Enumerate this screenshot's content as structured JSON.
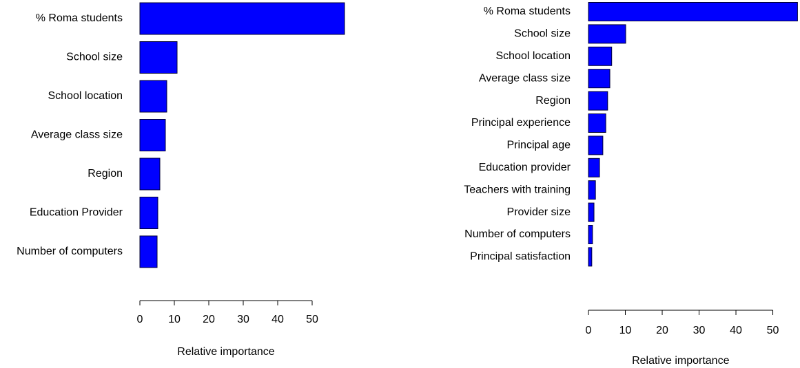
{
  "chart_data": [
    {
      "type": "bar",
      "orientation": "horizontal",
      "x_label": "Relative importance",
      "categories": [
        "% Roma students",
        "School size",
        "School location",
        "Average class size",
        "Region",
        "Education Provider",
        "Number of computers"
      ],
      "values": [
        59.4,
        10.8,
        7.8,
        7.4,
        5.8,
        5.2,
        5.0
      ],
      "color": "#0000ff",
      "xlim": [
        0,
        60
      ],
      "xticks": [
        0,
        10,
        20,
        30,
        40,
        50
      ]
    },
    {
      "type": "bar",
      "orientation": "horizontal",
      "x_label": "Relative importance",
      "categories": [
        "% Roma students",
        "School size",
        "School location",
        "Average class size",
        "Region",
        "Principal experience",
        "Principal age",
        "Education provider",
        "Teachers with training",
        "Provider size",
        "Number of computers",
        "Principal satisfaction"
      ],
      "values": [
        56.7,
        10.1,
        6.3,
        5.8,
        5.2,
        4.7,
        3.9,
        3.0,
        1.9,
        1.5,
        1.1,
        0.9
      ],
      "color": "#0000ff",
      "xlim": [
        0,
        57
      ],
      "xticks": [
        0,
        10,
        20,
        30,
        40,
        50
      ]
    }
  ]
}
